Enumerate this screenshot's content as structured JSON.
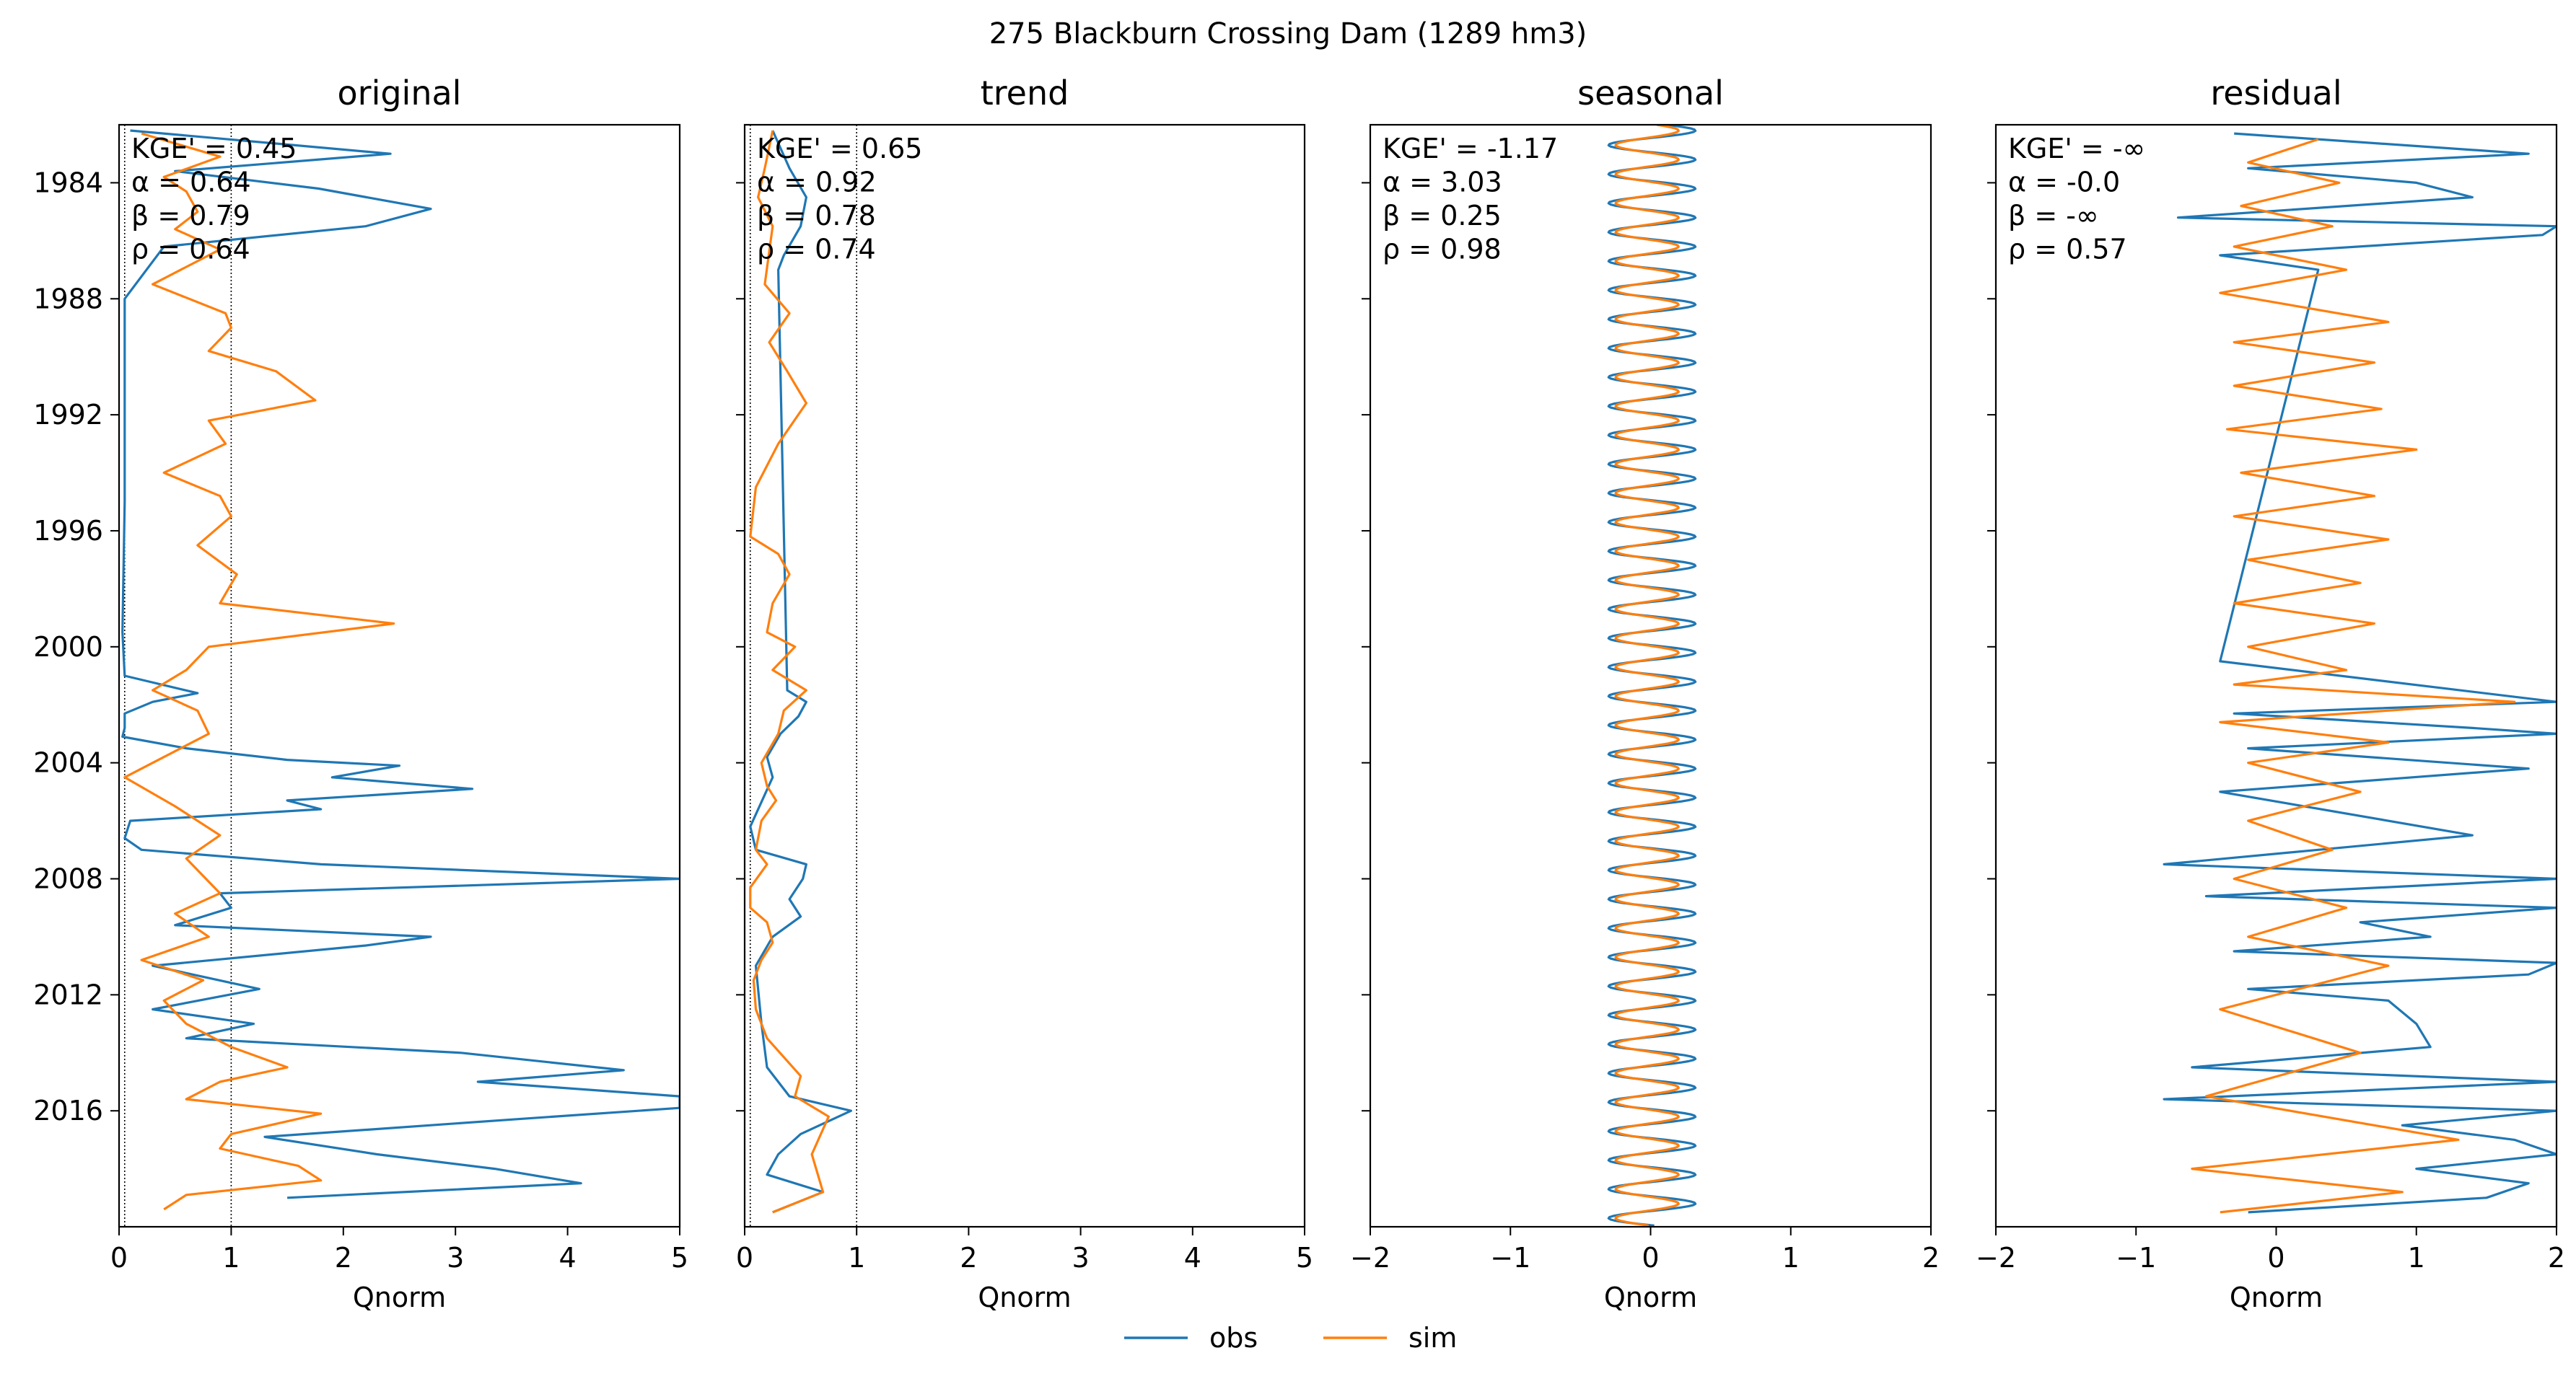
{
  "figure": {
    "title": "275  Blackburn Crossing Dam (1289 hm3)",
    "legend": {
      "placement": "bottom-center",
      "entries": [
        {
          "name": "obs",
          "color": "#1f77b4"
        },
        {
          "name": "sim",
          "color": "#ff7f0e"
        }
      ]
    }
  },
  "chart_data": [
    {
      "type": "line",
      "title": "original",
      "xlabel": "Qnorm",
      "xlim": [
        0,
        5
      ],
      "ylim": [
        "1982-01-01",
        "2019-12-31"
      ],
      "xticks": [
        0,
        1,
        2,
        3,
        4,
        5
      ],
      "xtick_labels": [
        "0",
        "1",
        "2",
        "3",
        "4",
        "5"
      ],
      "yticks": [
        "1984",
        "1988",
        "1992",
        "1996",
        "2000",
        "2004",
        "2008",
        "2012",
        "2016"
      ],
      "vlines": [
        0.05,
        1
      ],
      "metrics": [
        "KGE' = 0.45",
        "α = 0.64",
        "β = 0.79",
        "ρ = 0.64"
      ],
      "series": [
        {
          "name": "obs",
          "color": "#1f77b4",
          "x": [
            0.1,
            2.42,
            0.5,
            1.78,
            2.78,
            2.2,
            0.4,
            0.05,
            0.05,
            0.05,
            0.03,
            0.05,
            0.7,
            0.3,
            0.05,
            0.05,
            0.03,
            0.6,
            1.5,
            2.5,
            1.9,
            3.15,
            1.5,
            1.8,
            0.1,
            0.05,
            0.2,
            1.8,
            5.0,
            0.9,
            1.0,
            0.5,
            2.78,
            2.2,
            0.3,
            1.25,
            0.3,
            1.2,
            0.6,
            3.05,
            4.5,
            3.2,
            5.0,
            5.0,
            3.5,
            1.3,
            2.3,
            3.35,
            4.12,
            1.5
          ],
          "y": [
            "1982.2",
            "1983.0",
            "1983.6",
            "1984.2",
            "1984.9",
            "1985.5",
            "1986.2",
            "1988.0",
            "1991.0",
            "1995.0",
            "1999.5",
            "2001.0",
            "2001.6",
            "2001.9",
            "2002.3",
            "2002.8",
            "2003.1",
            "2003.5",
            "2003.9",
            "2004.1",
            "2004.5",
            "2004.9",
            "2005.3",
            "2005.6",
            "2006.0",
            "2006.6",
            "2007.0",
            "2007.5",
            "2008.0",
            "2008.5",
            "2009.0",
            "2009.6",
            "2010.0",
            "2010.3",
            "2011.0",
            "2011.8",
            "2012.5",
            "2013.0",
            "2013.5",
            "2014.0",
            "2014.6",
            "2015.0",
            "2015.5",
            "2015.9",
            "2016.3",
            "2016.9",
            "2017.5",
            "2018.0",
            "2018.5",
            "2019.0"
          ]
        },
        {
          "name": "sim",
          "color": "#ff7f0e",
          "x": [
            0.2,
            0.9,
            0.4,
            0.6,
            0.7,
            0.5,
            0.9,
            0.3,
            0.95,
            1.0,
            0.8,
            1.4,
            1.75,
            0.8,
            0.95,
            0.4,
            0.9,
            1.0,
            0.7,
            1.05,
            0.9,
            2.45,
            0.8,
            0.6,
            0.3,
            0.7,
            0.8,
            0.05,
            0.5,
            0.9,
            0.6,
            0.9,
            0.5,
            0.8,
            0.2,
            0.75,
            0.4,
            0.6,
            1.0,
            1.5,
            0.9,
            0.6,
            1.8,
            1.0,
            0.9,
            1.6,
            1.8,
            0.6,
            0.4
          ],
          "y": [
            "1982.3",
            "1983.1",
            "1983.8",
            "1984.3",
            "1985.0",
            "1985.6",
            "1986.3",
            "1987.5",
            "1988.5",
            "1989.0",
            "1989.8",
            "1990.5",
            "1991.5",
            "1992.2",
            "1993.0",
            "1994.0",
            "1994.8",
            "1995.5",
            "1996.5",
            "1997.5",
            "1998.5",
            "1999.2",
            "2000.0",
            "2000.8",
            "2001.5",
            "2002.2",
            "2003.0",
            "2004.5",
            "2005.5",
            "2006.5",
            "2007.3",
            "2008.5",
            "2009.2",
            "2010.0",
            "2010.8",
            "2011.5",
            "2012.2",
            "2013.0",
            "2013.8",
            "2014.5",
            "2015.0",
            "2015.6",
            "2016.1",
            "2016.8",
            "2017.3",
            "2017.9",
            "2018.4",
            "2018.9",
            "2019.4"
          ]
        }
      ]
    },
    {
      "type": "line",
      "title": "trend",
      "xlabel": "Qnorm",
      "xlim": [
        0,
        5
      ],
      "ylim": [
        "1982-01-01",
        "2019-12-31"
      ],
      "xticks": [
        0,
        1,
        2,
        3,
        4,
        5
      ],
      "xtick_labels": [
        "0",
        "1",
        "2",
        "3",
        "4",
        "5"
      ],
      "yticks": [
        "1984",
        "1988",
        "1992",
        "1996",
        "2000",
        "2004",
        "2008",
        "2012",
        "2016"
      ],
      "vlines": [
        0.05,
        1
      ],
      "metrics": [
        "KGE' = 0.65",
        "α = 0.92",
        "β = 0.78",
        "ρ = 0.74"
      ],
      "series": [
        {
          "name": "obs",
          "color": "#1f77b4",
          "x": [
            0.25,
            0.4,
            0.55,
            0.5,
            0.35,
            0.3,
            0.38,
            0.55,
            0.48,
            0.32,
            0.2,
            0.25,
            0.05,
            0.1,
            0.55,
            0.52,
            0.4,
            0.5,
            0.25,
            0.1,
            0.15,
            0.2,
            0.4,
            0.95,
            0.5,
            0.3,
            0.2,
            0.7,
            0.25
          ],
          "y": [
            "1982.2",
            "1983.5",
            "1984.5",
            "1985.5",
            "1986.5",
            "1987.0",
            "2001.5",
            "2001.9",
            "2002.4",
            "2003.0",
            "2003.8",
            "2004.5",
            "2006.2",
            "2007.0",
            "2007.5",
            "2008.0",
            "2008.7",
            "2009.3",
            "2010.0",
            "2011.0",
            "2013.0",
            "2014.5",
            "2015.5",
            "2016.0",
            "2016.8",
            "2017.5",
            "2018.2",
            "2018.8",
            "2019.5"
          ]
        },
        {
          "name": "sim",
          "color": "#ff7f0e",
          "x": [
            0.25,
            0.18,
            0.12,
            0.25,
            0.18,
            0.4,
            0.22,
            0.38,
            0.55,
            0.3,
            0.1,
            0.05,
            0.3,
            0.4,
            0.25,
            0.2,
            0.45,
            0.25,
            0.55,
            0.35,
            0.3,
            0.15,
            0.2,
            0.28,
            0.15,
            0.1,
            0.2,
            0.05,
            0.05,
            0.2,
            0.25,
            0.15,
            0.08,
            0.1,
            0.2,
            0.5,
            0.45,
            0.75,
            0.6,
            0.7,
            0.25
          ],
          "y": [
            "1982.2",
            "1983.5",
            "1984.5",
            "1985.5",
            "1987.5",
            "1988.5",
            "1989.5",
            "1990.5",
            "1991.6",
            "1993.0",
            "1994.5",
            "1996.2",
            "1996.8",
            "1997.5",
            "1998.5",
            "1999.5",
            "2000.0",
            "2000.8",
            "2001.5",
            "2002.2",
            "2003.0",
            "2004.0",
            "2004.8",
            "2005.3",
            "2006.0",
            "2007.0",
            "2007.5",
            "2008.3",
            "2009.0",
            "2009.5",
            "2010.2",
            "2010.8",
            "2011.5",
            "2012.5",
            "2013.5",
            "2014.8",
            "2015.5",
            "2016.2",
            "2017.5",
            "2018.8",
            "2019.5"
          ]
        }
      ]
    },
    {
      "type": "line",
      "title": "seasonal",
      "xlabel": "Qnorm",
      "xlim": [
        -2,
        2
      ],
      "ylim": [
        "1982-01-01",
        "2019-12-31"
      ],
      "xticks": [
        -2,
        -1,
        0,
        1,
        2
      ],
      "xtick_labels": [
        "−2",
        "−1",
        "0",
        "1",
        "2"
      ],
      "yticks": [
        "1984",
        "1988",
        "1992",
        "1996",
        "2000",
        "2004",
        "2008",
        "2012",
        "2016"
      ],
      "vlines": [],
      "metrics": [
        "KGE' = -1.17",
        "α = 3.03",
        "β = 0.25",
        "ρ = 0.98"
      ],
      "cycle": {
        "period_years": 1,
        "first_peak_year": 1982.2
      },
      "series": [
        {
          "name": "obs",
          "color": "#1f77b4",
          "min": -0.3,
          "max": 0.32
        },
        {
          "name": "sim",
          "color": "#ff7f0e",
          "min": -0.25,
          "max": 0.2
        }
      ]
    },
    {
      "type": "line",
      "title": "residual",
      "xlabel": "Qnorm",
      "xlim": [
        -2,
        2
      ],
      "ylim": [
        "1982-01-01",
        "2019-12-31"
      ],
      "xticks": [
        -2,
        -1,
        0,
        1,
        2
      ],
      "xtick_labels": [
        "−2",
        "−1",
        "0",
        "1",
        "2"
      ],
      "yticks": [
        "1984",
        "1988",
        "1992",
        "1996",
        "2000",
        "2004",
        "2008",
        "2012",
        "2016"
      ],
      "vlines": [],
      "metrics": [
        "KGE' = -∞",
        "α = -0.0",
        "β = -∞",
        "ρ = 0.57"
      ],
      "series": [
        {
          "name": "obs",
          "color": "#1f77b4",
          "x": [
            -0.3,
            1.8,
            -0.2,
            1.0,
            1.4,
            -0.7,
            2.0,
            1.9,
            -0.4,
            0.3,
            -0.4,
            2.0,
            -0.3,
            1.4,
            2.0,
            -0.2,
            1.8,
            -0.4,
            1.4,
            0.3,
            -0.8,
            2.0,
            -0.5,
            2.0,
            0.6,
            1.1,
            -0.3,
            2.0,
            1.8,
            -0.2,
            0.8,
            1.0,
            1.1,
            -0.6,
            2.0,
            -0.8,
            2.0,
            0.9,
            1.7,
            2.0,
            1.0,
            1.8,
            1.5,
            -0.2
          ],
          "y": [
            "1982.3",
            "1983.0",
            "1983.5",
            "1984.0",
            "1984.5",
            "1985.2",
            "1985.5",
            "1985.8",
            "1986.5",
            "1987.0",
            "2000.5",
            "2001.9",
            "2002.3",
            "2002.8",
            "2003.0",
            "2003.5",
            "2004.2",
            "2005.0",
            "2006.5",
            "2007.0",
            "2007.5",
            "2008.0",
            "2008.6",
            "2009.0",
            "2009.5",
            "2010.0",
            "2010.5",
            "2010.9",
            "2011.3",
            "2011.8",
            "2012.2",
            "2013.0",
            "2013.8",
            "2014.5",
            "2015.0",
            "2015.6",
            "2016.0",
            "2016.5",
            "2017.0",
            "2017.5",
            "2018.0",
            "2018.5",
            "2019.0",
            "2019.5"
          ]
        },
        {
          "name": "sim",
          "color": "#ff7f0e",
          "x": [
            0.3,
            -0.2,
            0.45,
            -0.25,
            0.4,
            -0.3,
            0.5,
            -0.4,
            0.8,
            -0.3,
            0.7,
            -0.3,
            0.75,
            -0.35,
            1.0,
            -0.25,
            0.7,
            -0.3,
            0.8,
            -0.2,
            0.6,
            -0.3,
            0.7,
            -0.2,
            0.5,
            -0.3,
            1.7,
            -0.4,
            0.8,
            -0.2,
            0.6,
            -0.2,
            0.4,
            -0.3,
            0.5,
            -0.2,
            0.8,
            -0.4,
            0.6,
            -0.5,
            1.3,
            -0.6,
            0.9,
            -0.4
          ],
          "y": [
            "1982.5",
            "1983.3",
            "1984.0",
            "1984.8",
            "1985.5",
            "1986.2",
            "1987.0",
            "1987.8",
            "1988.8",
            "1989.5",
            "1990.2",
            "1991.0",
            "1991.8",
            "1992.5",
            "1993.2",
            "1994.0",
            "1994.8",
            "1995.5",
            "1996.3",
            "1997.0",
            "1997.8",
            "1998.5",
            "1999.2",
            "2000.0",
            "2000.8",
            "2001.3",
            "2001.9",
            "2002.6",
            "2003.3",
            "2004.0",
            "2005.0",
            "2006.0",
            "2007.0",
            "2008.0",
            "2009.0",
            "2010.0",
            "2011.0",
            "2012.5",
            "2014.0",
            "2015.5",
            "2017.0",
            "2018.0",
            "2018.8",
            "2019.5"
          ]
        }
      ]
    }
  ]
}
